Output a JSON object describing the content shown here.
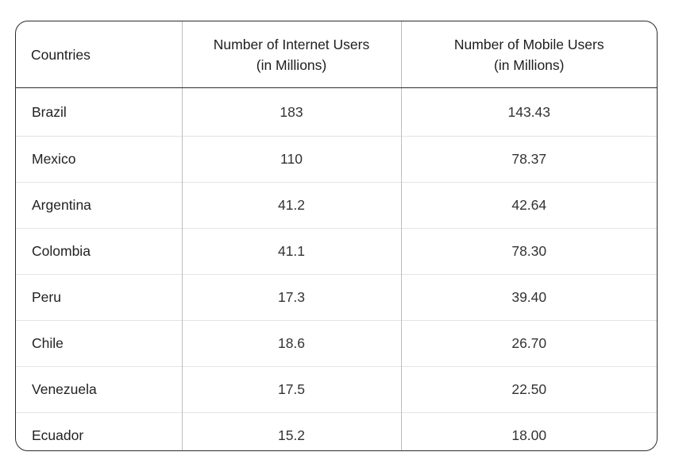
{
  "chart_data": {
    "type": "table",
    "columns": [
      "Countries",
      "Number of Internet Users (in Millions)",
      "Number of Mobile Users (in Millions)"
    ],
    "header": {
      "col1": "Countries",
      "col2_line1": "Number of Internet Users",
      "col2_line2": "(in Millions)",
      "col3_line1": "Number of Mobile Users",
      "col3_line2": "(in Millions)"
    },
    "rows": [
      {
        "country": "Brazil",
        "internet": "183",
        "mobile": "143.43"
      },
      {
        "country": "Mexico",
        "internet": "110",
        "mobile": "78.37"
      },
      {
        "country": "Argentina",
        "internet": "41.2",
        "mobile": "42.64"
      },
      {
        "country": "Colombia",
        "internet": "41.1",
        "mobile": "78.30"
      },
      {
        "country": "Peru",
        "internet": "17.3",
        "mobile": "39.40"
      },
      {
        "country": "Chile",
        "internet": "18.6",
        "mobile": "26.70"
      },
      {
        "country": "Venezuela",
        "internet": "17.5",
        "mobile": "22.50"
      },
      {
        "country": "Ecuador",
        "internet": "15.2",
        "mobile": "18.00"
      }
    ]
  },
  "colors": {
    "border": "#2b2b2b",
    "divider": "#e3e3e3",
    "text": "#222222"
  }
}
